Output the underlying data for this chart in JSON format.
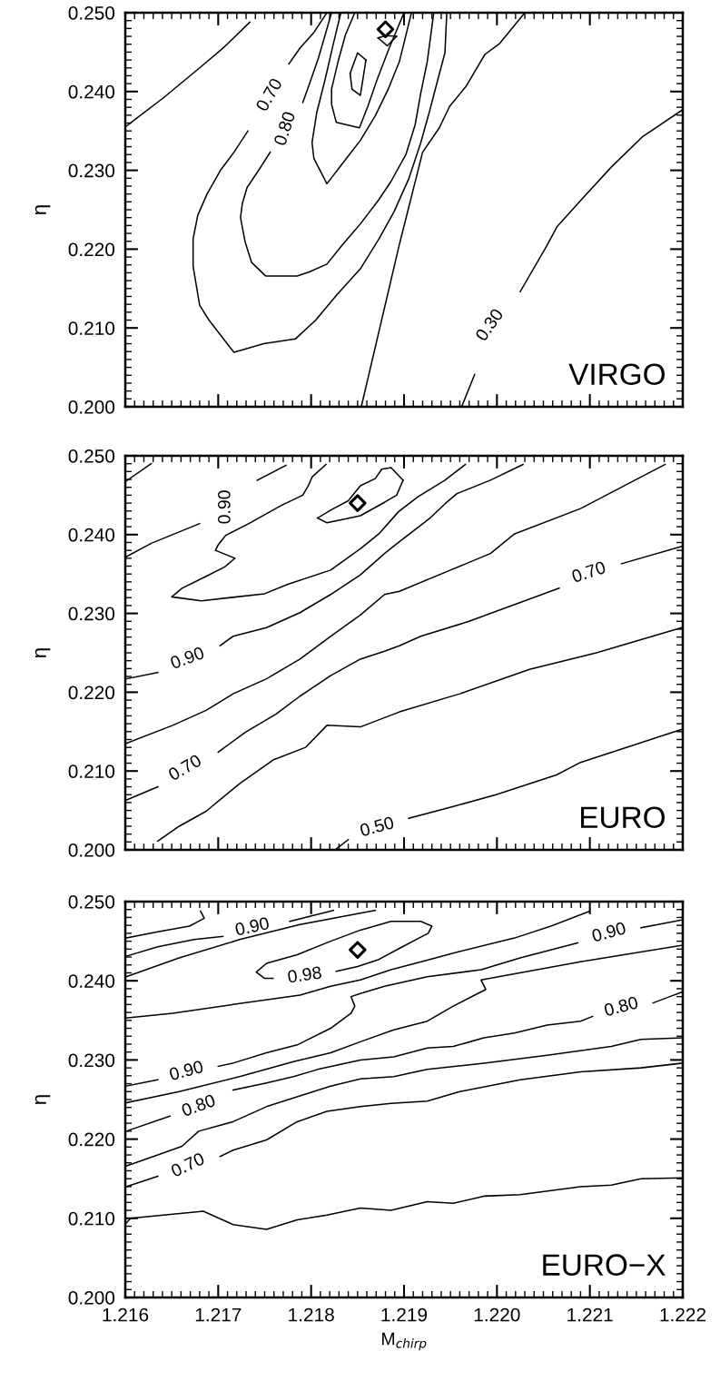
{
  "chart_data": [
    {
      "type": "line",
      "ylabel": "η",
      "xlim": [
        1.216,
        1.222
      ],
      "ylim": [
        0.2,
        0.25
      ],
      "xticks": [
        1.216,
        1.217,
        1.218,
        1.219,
        1.22,
        1.221,
        1.222
      ],
      "yticks": [
        {
          "value": 0.2,
          "label": "0.200"
        },
        {
          "value": 0.21,
          "label": "0.210"
        },
        {
          "value": 0.22,
          "label": "0.220"
        },
        {
          "value": 0.23,
          "label": "0.230"
        },
        {
          "value": 0.24,
          "label": "0.240"
        },
        {
          "value": 0.25,
          "label": "0.250"
        }
      ],
      "tick_labels": "y",
      "series": [
        {
          "color": "#000000",
          "x": [
            1.216,
            1.21612,
            1.21641,
            1.2168,
            1.21707,
            1.21734
          ],
          "values": [
            0.2355,
            0.2366,
            0.2392,
            0.243,
            0.2457,
            0.2488
          ]
        },
        {
          "color": "#000000",
          "x": [
            1.21732,
            1.21717,
            1.21703,
            1.21688,
            1.21678,
            1.21673,
            1.21673,
            1.2168,
            1.2169,
            1.21717,
            1.21749,
            1.21783,
            1.21805,
            1.21827,
            1.21853,
            1.21873,
            1.21889,
            1.21905,
            1.21918,
            1.21927,
            1.21935,
            1.21944,
            1.21946
          ],
          "values": [
            0.235,
            0.2323,
            0.2301,
            0.227,
            0.2243,
            0.2213,
            0.2178,
            0.2129,
            0.211,
            0.2069,
            0.208,
            0.2086,
            0.211,
            0.2141,
            0.2175,
            0.2213,
            0.2247,
            0.2289,
            0.2335,
            0.2373,
            0.2409,
            0.2449,
            0.25
          ]
        },
        {
          "color": "#000000",
          "x": [
            1.21776,
            1.21788,
            1.21803,
            1.21817
          ],
          "values": [
            0.2435,
            0.2455,
            0.2475,
            0.25
          ]
        },
        {
          "color": "#000000",
          "x": [
            1.21756,
            1.21744,
            1.21731,
            1.21726,
            1.21724,
            1.21729,
            1.21736,
            1.21751,
            1.21785,
            1.21798,
            1.21817,
            1.21834,
            1.21853,
            1.21873,
            1.21886,
            1.21902,
            1.21912,
            1.21918,
            1.21925,
            1.21932
          ],
          "values": [
            0.2323,
            0.2301,
            0.2278,
            0.2258,
            0.224,
            0.2209,
            0.2183,
            0.2166,
            0.2166,
            0.2171,
            0.2181,
            0.2206,
            0.2232,
            0.2263,
            0.2286,
            0.232,
            0.2358,
            0.2398,
            0.2438,
            0.25
          ]
        },
        {
          "color": "#000000",
          "x": [
            1.21791,
            1.21798,
            1.21808,
            1.21822
          ],
          "values": [
            0.2386,
            0.2409,
            0.2443,
            0.25
          ]
        },
        {
          "color": "#000000",
          "x": [
            1.21832,
            1.21824,
            1.21815,
            1.21806,
            1.21801,
            1.21803,
            1.21817,
            1.21834,
            1.21853,
            1.21869,
            1.21883,
            1.21895,
            1.21908
          ],
          "values": [
            0.25,
            0.2461,
            0.2415,
            0.2373,
            0.2335,
            0.2315,
            0.2283,
            0.2309,
            0.2338,
            0.2369,
            0.2403,
            0.2438,
            0.25
          ]
        },
        {
          "color": "#000000",
          "x": [
            1.21847,
            1.21837,
            1.21829,
            1.21822,
            1.21822,
            1.21827,
            1.21852,
            1.21861,
            1.21871,
            1.21884,
            1.219
          ],
          "values": [
            0.25,
            0.2472,
            0.2438,
            0.2403,
            0.2384,
            0.2361,
            0.2354,
            0.2381,
            0.2415,
            0.2455,
            0.25
          ]
        },
        {
          "color": "#000000",
          "x": [
            1.21842,
            1.2185,
            1.21859
          ],
          "values": [
            0.2423,
            0.2449,
            0.244
          ]
        },
        {
          "color": "#000000",
          "x": [
            1.21842,
            1.21844,
            1.21853,
            1.21859
          ],
          "values": [
            0.2423,
            0.2403,
            0.2395,
            0.244
          ]
        },
        {
          "color": "#000000",
          "x": [
            1.21872,
            1.2188,
            1.21892
          ],
          "values": [
            0.2468,
            0.2471,
            0.247
          ]
        },
        {
          "color": "#000000",
          "x": [
            1.21872,
            1.21882,
            1.21892
          ],
          "values": [
            0.2468,
            0.2458,
            0.247
          ]
        },
        {
          "color": "#000000",
          "x": [
            1.21854,
            1.21895,
            1.2192,
            1.21938,
            1.21949,
            1.21967,
            1.21987,
            1.22003,
            1.2203
          ],
          "values": [
            0.2,
            0.2206,
            0.2323,
            0.2354,
            0.2381,
            0.2407,
            0.2447,
            0.2461,
            0.25
          ]
        },
        {
          "color": "#000000",
          "x": [
            1.22025,
            1.22052,
            1.22065,
            1.22091,
            1.22123,
            1.22157,
            1.222
          ],
          "values": [
            0.2146,
            0.2201,
            0.2229,
            0.2263,
            0.2304,
            0.2343,
            0.2377
          ]
        },
        {
          "color": "#000000",
          "x": [
            1.21976,
            1.21962
          ],
          "values": [
            0.2041,
            0.2
          ]
        },
        {
          "type": "scatter",
          "marker": "diamond",
          "color": "#000000",
          "x": [
            1.2188
          ],
          "values": [
            0.2479
          ]
        }
      ],
      "annotations": [
        "0.70",
        "0.80",
        "0.30",
        "VIRGO"
      ]
    },
    {
      "type": "line",
      "ylabel": "η",
      "xlim": [
        1.216,
        1.222
      ],
      "ylim": [
        0.2,
        0.25
      ],
      "xticks": [
        1.216,
        1.217,
        1.218,
        1.219,
        1.22,
        1.221,
        1.222
      ],
      "yticks": [
        {
          "value": 0.2,
          "label": "0.200"
        },
        {
          "value": 0.21,
          "label": "0.210"
        },
        {
          "value": 0.22,
          "label": "0.220"
        },
        {
          "value": 0.23,
          "label": "0.230"
        },
        {
          "value": 0.24,
          "label": "0.240"
        },
        {
          "value": 0.25,
          "label": "0.250"
        }
      ],
      "tick_labels": "y",
      "series": [
        {
          "color": "#000000",
          "x": [
            1.21601,
            1.21628
          ],
          "values": [
            0.2468,
            0.249
          ]
        },
        {
          "color": "#000000",
          "x": [
            1.21601,
            1.21628,
            1.2168
          ],
          "values": [
            0.2372,
            0.2389,
            0.2414
          ]
        },
        {
          "color": "#000000",
          "x": [
            1.21742,
            1.21773
          ],
          "values": [
            0.2469,
            0.2488
          ]
        },
        {
          "color": "#000000",
          "x": [
            1.21816,
            1.21801,
            1.21797,
            1.21791,
            1.21768,
            1.21733,
            1.21708,
            1.217,
            1.21697,
            1.21718,
            1.21707,
            1.21687,
            1.21661,
            1.2165,
            1.21682,
            1.2175,
            1.21775,
            1.21821,
            1.21853,
            1.21873,
            1.21894,
            1.21915,
            1.21944,
            1.21966
          ],
          "values": [
            0.2489,
            0.2473,
            0.2462,
            0.245,
            0.2437,
            0.2414,
            0.2399,
            0.2387,
            0.238,
            0.237,
            0.2359,
            0.2347,
            0.2332,
            0.2321,
            0.2316,
            0.2325,
            0.2337,
            0.2355,
            0.2382,
            0.2401,
            0.2429,
            0.2448,
            0.2469,
            0.2489
          ]
        },
        {
          "color": "#000000",
          "x": [
            1.21807,
            1.21821,
            1.2184,
            1.21853,
            1.21869,
            1.21876,
            1.21886,
            1.21899
          ],
          "values": [
            0.2421,
            0.2431,
            0.2443,
            0.2462,
            0.2471,
            0.2483,
            0.2485,
            0.2469
          ]
        },
        {
          "color": "#000000",
          "x": [
            1.21807,
            1.21817,
            1.21837,
            1.21853,
            1.21879,
            1.21892,
            1.21899
          ],
          "values": [
            0.2421,
            0.2415,
            0.242,
            0.2424,
            0.2441,
            0.245,
            0.2469
          ]
        },
        {
          "color": "#000000",
          "x": [
            1.21601,
            1.21635
          ],
          "values": [
            0.2217,
            0.2225
          ]
        },
        {
          "color": "#000000",
          "x": [
            1.21702,
            1.21716,
            1.21752,
            1.21788,
            1.21821,
            1.21853,
            1.21879,
            1.21895,
            1.21927,
            1.21944,
            1.21957,
            1.21993,
            1.22028
          ],
          "values": [
            0.2259,
            0.2271,
            0.2282,
            0.2301,
            0.2324,
            0.2349,
            0.2376,
            0.2391,
            0.242,
            0.2439,
            0.2452,
            0.2469,
            0.2489
          ]
        },
        {
          "color": "#000000",
          "x": [
            1.21601,
            1.21651,
            1.21687,
            1.21716,
            1.21752,
            1.21788,
            1.21821,
            1.21853,
            1.21879,
            1.21895,
            1.2195,
            1.21993,
            1.22019,
            1.2209,
            1.22181
          ],
          "values": [
            0.2135,
            0.2158,
            0.2177,
            0.2198,
            0.2217,
            0.2242,
            0.2271,
            0.2298,
            0.2324,
            0.2328,
            0.2355,
            0.2376,
            0.2401,
            0.2433,
            0.2489
          ]
        },
        {
          "color": "#000000",
          "x": [
            1.21601,
            1.21635
          ],
          "values": [
            0.2063,
            0.208
          ]
        },
        {
          "color": "#000000",
          "x": [
            1.217,
            1.21729,
            1.21762,
            1.21788,
            1.21821,
            1.21853,
            1.21879,
            1.21895,
            1.21918,
            1.2197,
            1.22067
          ],
          "values": [
            0.2124,
            0.2149,
            0.2172,
            0.2195,
            0.2221,
            0.2242,
            0.2252,
            0.2259,
            0.2271,
            0.229,
            0.2332
          ]
        },
        {
          "color": "#000000",
          "x": [
            1.22134,
            1.22199
          ],
          "values": [
            0.2363,
            0.2385
          ]
        },
        {
          "color": "#000000",
          "x": [
            1.21635,
            1.21658,
            1.21687,
            1.21723,
            1.21759,
            1.21794,
            1.21817,
            1.21853,
            1.21895,
            1.2196,
            1.22035,
            1.22107,
            1.22199
          ],
          "values": [
            0.2011,
            0.203,
            0.2049,
            0.2084,
            0.2114,
            0.213,
            0.2158,
            0.2156,
            0.2175,
            0.2198,
            0.2229,
            0.225,
            0.2282
          ]
        },
        {
          "color": "#000000",
          "x": [
            1.21827,
            1.2184
          ],
          "values": [
            0.2001,
            0.2013
          ]
        },
        {
          "color": "#000000",
          "x": [
            1.21905,
            1.21953,
            1.21999,
            1.22064,
            1.2209,
            1.22199
          ],
          "values": [
            0.204,
            0.2055,
            0.207,
            0.2095,
            0.2111,
            0.2153
          ]
        },
        {
          "type": "scatter",
          "marker": "diamond",
          "color": "#000000",
          "x": [
            1.2185
          ],
          "values": [
            0.244
          ]
        }
      ],
      "annotations": [
        "0.90",
        "0.90",
        "0.70",
        "0.70",
        "0.50",
        "EURO"
      ]
    },
    {
      "type": "line",
      "ylabel": "η",
      "xlabel": "M$_{chirp}$",
      "xlim": [
        1.216,
        1.222
      ],
      "ylim": [
        0.2,
        0.25
      ],
      "xticks": [
        1.216,
        1.217,
        1.218,
        1.219,
        {
          "value": 1.22,
          "label": "1.220"
        },
        1.221,
        1.222
      ],
      "yticks": [
        {
          "value": 0.2,
          "label": "0.200"
        },
        {
          "value": 0.21,
          "label": "0.210"
        },
        {
          "value": 0.22,
          "label": "0.220"
        },
        {
          "value": 0.23,
          "label": "0.230"
        },
        {
          "value": 0.24,
          "label": "0.240"
        },
        {
          "value": 0.25,
          "label": "0.250"
        }
      ],
      "series": [
        {
          "color": "#000000",
          "x": [
            1.21601,
            1.21635,
            1.21669,
            1.21685,
            1.21681
          ],
          "values": [
            0.2454,
            0.2462,
            0.2469,
            0.2479,
            0.2488
          ]
        },
        {
          "color": "#000000",
          "x": [
            1.21601,
            1.21635,
            1.21674,
            1.21705
          ],
          "values": [
            0.2431,
            0.2443,
            0.2452,
            0.2456
          ]
        },
        {
          "color": "#000000",
          "x": [
            1.21777,
            1.21824
          ],
          "values": [
            0.2475,
            0.2489
          ]
        },
        {
          "color": "#000000",
          "x": [
            1.21601,
            1.21658,
            1.21723,
            1.21788,
            1.21869
          ],
          "values": [
            0.2405,
            0.2429,
            0.2452,
            0.2471,
            0.2489
          ]
        },
        {
          "color": "#000000",
          "x": [
            1.21759,
            1.2175,
            1.21741,
            1.21752,
            1.21785,
            1.21821,
            1.21853,
            1.21886,
            1.21918,
            1.2193,
            1.21926,
            1.21895,
            1.21873,
            1.2185,
            1.21827
          ],
          "values": [
            0.2403,
            0.2403,
            0.2411,
            0.2422,
            0.2433,
            0.245,
            0.2464,
            0.2475,
            0.2475,
            0.2469,
            0.246,
            0.2441,
            0.2427,
            0.2418,
            0.2412
          ]
        },
        {
          "color": "#000000",
          "x": [
            1.221,
            1.22058,
            1.22019,
            1.21953,
            1.21925,
            1.21886,
            1.21853,
            1.21821,
            1.21788,
            1.21716,
            1.21651,
            1.21601
          ],
          "values": [
            0.2488,
            0.2469,
            0.2454,
            0.2435,
            0.2426,
            0.2414,
            0.2401,
            0.2393,
            0.2382,
            0.237,
            0.2359,
            0.2353
          ]
        },
        {
          "color": "#000000",
          "x": [
            1.21601,
            1.21635
          ],
          "values": [
            0.2267,
            0.2275
          ]
        },
        {
          "color": "#000000",
          "x": [
            1.217,
            1.21716,
            1.21752,
            1.21785,
            1.21821,
            1.21843,
            1.21847,
            1.21843,
            1.21853,
            1.21879,
            1.21925,
            1.21983,
            1.22025,
            1.22087
          ],
          "values": [
            0.2292,
            0.2296,
            0.2309,
            0.2319,
            0.234,
            0.2359,
            0.2368,
            0.238,
            0.2384,
            0.2393,
            0.2405,
            0.2414,
            0.2429,
            0.2448
          ]
        },
        {
          "color": "#000000",
          "x": [
            1.22155,
            1.222
          ],
          "values": [
            0.2467,
            0.2477
          ]
        },
        {
          "color": "#000000",
          "x": [
            1.21601,
            1.21658,
            1.21723,
            1.21781,
            1.21821,
            1.21853,
            1.21889,
            1.21925,
            1.21953,
            1.21988,
            1.21983,
            1.2209,
            1.222
          ],
          "values": [
            0.2246,
            0.226,
            0.2279,
            0.2298,
            0.2309,
            0.2323,
            0.2338,
            0.2349,
            0.2368,
            0.2389,
            0.2401,
            0.2424,
            0.2445
          ]
        },
        {
          "color": "#000000",
          "x": [
            1.21601,
            1.21648
          ],
          "values": [
            0.221,
            0.2229
          ]
        },
        {
          "color": "#000000",
          "x": [
            1.21716,
            1.21752,
            1.21781,
            1.21807,
            1.21853,
            1.21889,
            1.21925,
            1.21953,
            1.21986,
            1.22019,
            1.22054,
            1.2209,
            1.22103
          ],
          "values": [
            0.2262,
            0.2271,
            0.2279,
            0.2288,
            0.23,
            0.2304,
            0.2315,
            0.2317,
            0.2328,
            0.2334,
            0.2344,
            0.2349,
            0.2355
          ]
        },
        {
          "color": "#000000",
          "x": [
            1.22168,
            1.22186,
            1.222
          ],
          "values": [
            0.2372,
            0.238,
            0.2386
          ]
        },
        {
          "color": "#000000",
          "x": [
            1.21601,
            1.21635,
            1.21661,
            1.21679,
            1.21716,
            1.21752,
            1.21781,
            1.21821,
            1.21853,
            1.21889,
            1.21925,
            1.21986,
            1.22054,
            1.22123,
            1.22155,
            1.222
          ],
          "values": [
            0.2166,
            0.218,
            0.2191,
            0.221,
            0.2222,
            0.2241,
            0.2252,
            0.2267,
            0.2276,
            0.2279,
            0.2288,
            0.2296,
            0.2306,
            0.2317,
            0.2326,
            0.2328
          ]
        },
        {
          "color": "#000000",
          "x": [
            1.21601,
            1.21635
          ],
          "values": [
            0.214,
            0.2153
          ]
        },
        {
          "color": "#000000",
          "x": [
            1.21702,
            1.21716,
            1.21752,
            1.21785,
            1.21817,
            1.21853,
            1.21886,
            1.21925,
            1.2196,
            1.22025,
            1.2209,
            1.22155,
            1.222
          ],
          "values": [
            0.2178,
            0.2186,
            0.2199,
            0.2222,
            0.2235,
            0.2241,
            0.2245,
            0.2248,
            0.226,
            0.2275,
            0.2285,
            0.229,
            0.2296
          ]
        },
        {
          "color": "#000000",
          "x": [
            1.21601,
            1.21606,
            1.21684,
            1.21716,
            1.21752,
            1.21785,
            1.21817,
            1.21853,
            1.21886,
            1.21925,
            1.21953,
            1.21986,
            1.22025,
            1.2209,
            1.22123,
            1.22155,
            1.222
          ],
          "values": [
            0.2094,
            0.21,
            0.2109,
            0.2092,
            0.2086,
            0.2098,
            0.2104,
            0.2113,
            0.211,
            0.2121,
            0.2119,
            0.2128,
            0.213,
            0.214,
            0.2142,
            0.215,
            0.2151
          ]
        },
        {
          "type": "scatter",
          "marker": "diamond",
          "color": "#000000",
          "x": [
            1.2185
          ],
          "values": [
            0.2439
          ]
        }
      ],
      "annotations": [
        "0.90",
        "0.98",
        "0.90",
        "0.80",
        "0.70",
        "0.90",
        "0.80",
        "EURO−X"
      ]
    }
  ]
}
